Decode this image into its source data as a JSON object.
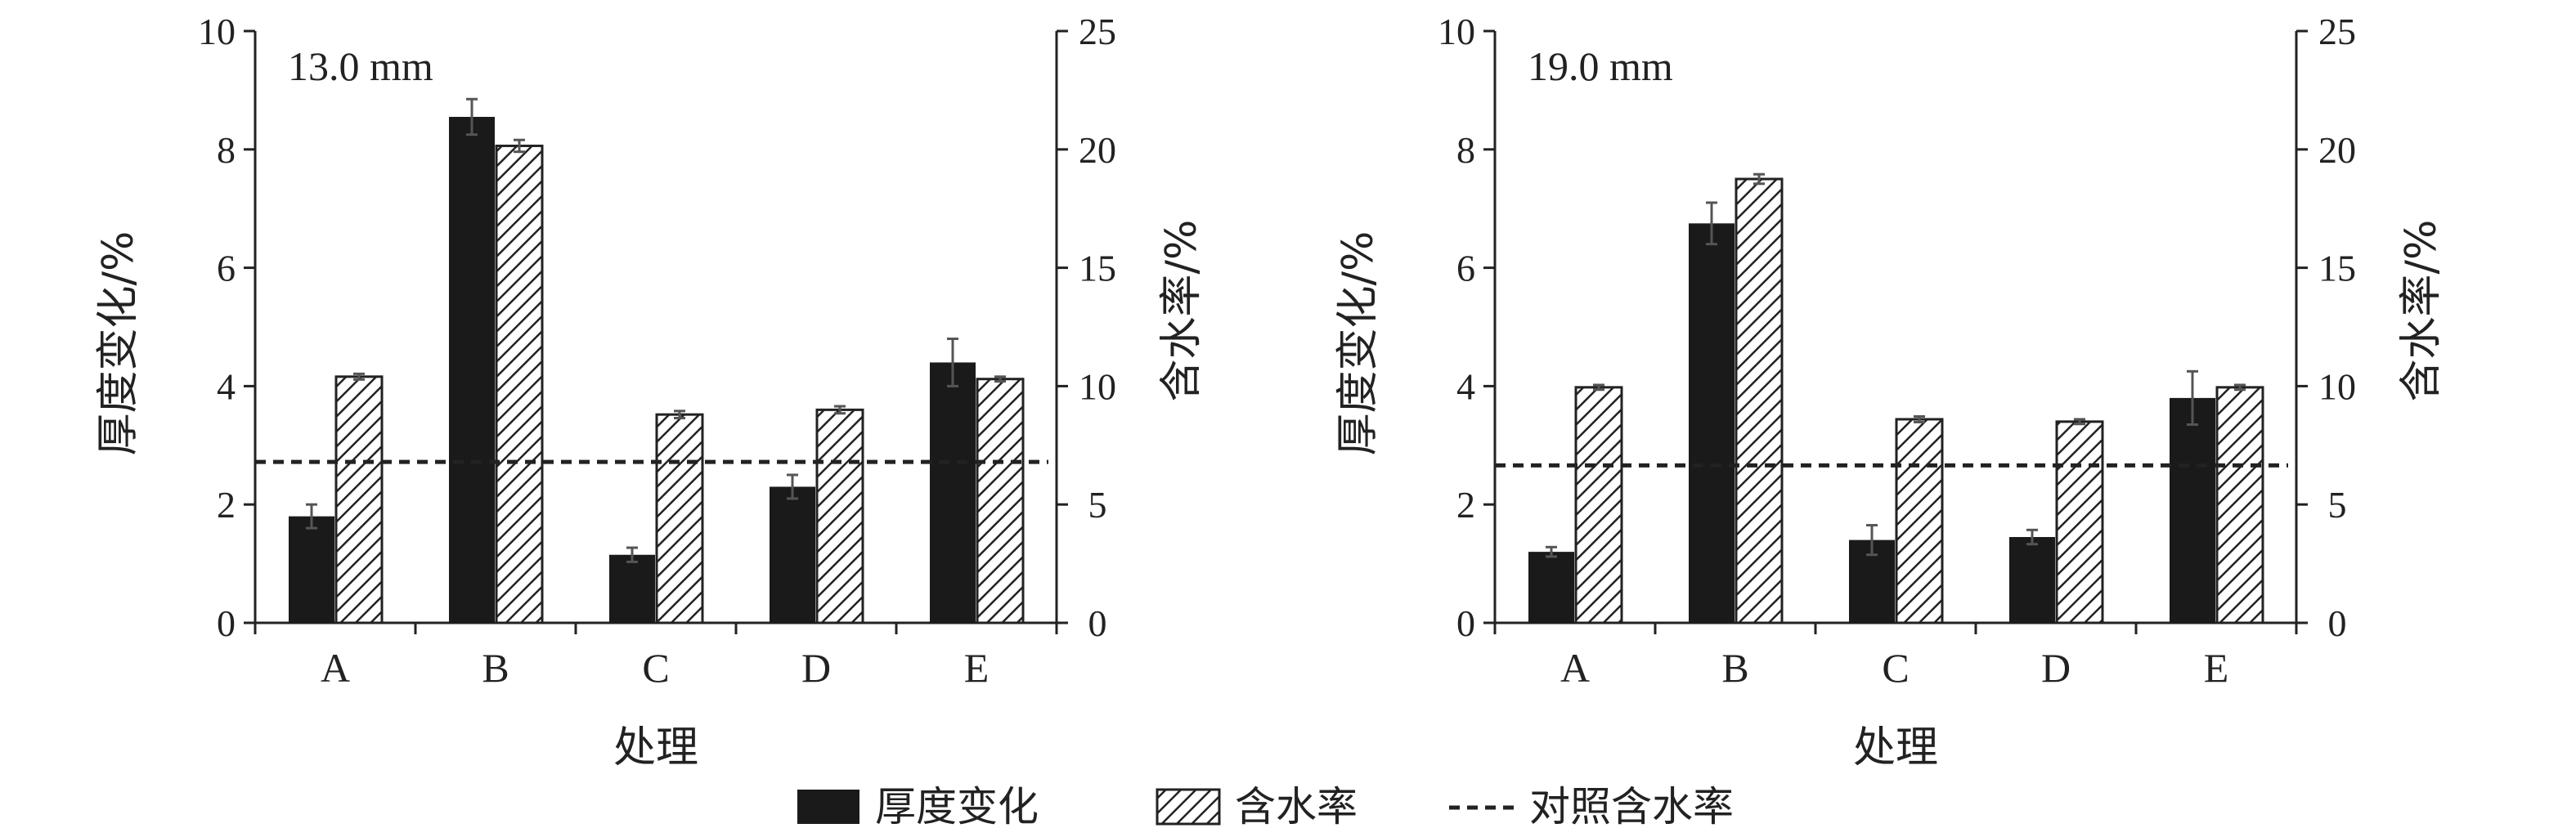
{
  "legend": {
    "thickness": "厚度变化",
    "moisture": "含水率",
    "control": "对照含水率"
  },
  "chart_data": [
    {
      "type": "bar",
      "panel_label": "13.0 mm",
      "categories": [
        "A",
        "B",
        "C",
        "D",
        "E"
      ],
      "xlabel": "处理",
      "ylabel_left": "厚度变化/%",
      "ylabel_right": "含水率/%",
      "ylim_left": [
        0,
        10
      ],
      "ylim_right": [
        0,
        25
      ],
      "yticks_left": [
        0,
        2,
        4,
        6,
        8,
        10
      ],
      "yticks_right": [
        0,
        5,
        10,
        15,
        20,
        25
      ],
      "series": [
        {
          "name": "厚度变化",
          "axis": "left",
          "values": [
            1.8,
            8.55,
            1.15,
            2.3,
            4.4
          ],
          "errors": [
            0.2,
            0.3,
            0.12,
            0.2,
            0.4
          ]
        },
        {
          "name": "含水率",
          "axis": "right",
          "values": [
            10.4,
            20.15,
            8.8,
            9.0,
            10.3
          ],
          "errors": [
            0.12,
            0.25,
            0.15,
            0.15,
            0.1
          ]
        }
      ],
      "reference_line": {
        "name": "对照含水率",
        "axis": "right",
        "value": 6.8
      }
    },
    {
      "type": "bar",
      "panel_label": "19.0 mm",
      "categories": [
        "A",
        "B",
        "C",
        "D",
        "E"
      ],
      "xlabel": "处理",
      "ylabel_left": "厚度变化/%",
      "ylabel_right": "含水率/%",
      "ylim_left": [
        0,
        10
      ],
      "ylim_right": [
        0,
        25
      ],
      "yticks_left": [
        0,
        2,
        4,
        6,
        8,
        10
      ],
      "yticks_right": [
        0,
        5,
        10,
        15,
        20,
        25
      ],
      "series": [
        {
          "name": "厚度变化",
          "axis": "left",
          "values": [
            1.2,
            6.75,
            1.4,
            1.45,
            3.8
          ],
          "errors": [
            0.08,
            0.35,
            0.25,
            0.12,
            0.45
          ]
        },
        {
          "name": "含水率",
          "axis": "right",
          "values": [
            9.95,
            18.75,
            8.6,
            8.5,
            9.95
          ],
          "errors": [
            0.1,
            0.2,
            0.12,
            0.1,
            0.1
          ]
        }
      ],
      "reference_line": {
        "name": "对照含水率",
        "axis": "right",
        "value": 6.65
      }
    }
  ]
}
